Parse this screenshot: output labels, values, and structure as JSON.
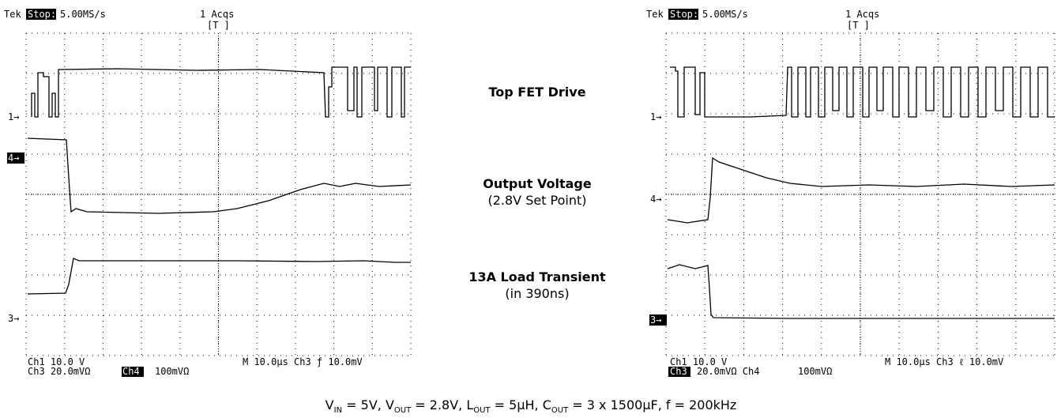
{
  "scopes": [
    {
      "header": {
        "brand": "Tek",
        "status": "Stop:",
        "rate": "5.00MS/s",
        "acqs": "1 Acqs",
        "trigger_mark": "[T ]"
      },
      "markers": [
        "1→",
        "4→",
        "3→"
      ],
      "readout": {
        "line1_left": "Ch1    10.0 V",
        "line1_right": "M 10.0µs  Ch3 ƒ   10.0mV",
        "line2_a": "Ch3  20.0mVΩ",
        "line2_b": "Ch4",
        "line2_c": "100mVΩ"
      }
    },
    {
      "header": {
        "brand": "Tek",
        "status": "Stop:",
        "rate": "5.00MS/s",
        "acqs": "1 Acqs",
        "trigger_mark": "[T ]"
      },
      "markers": [
        "1→",
        "4→",
        "3→"
      ],
      "readout": {
        "line1_left": "Ch1    10.0 V",
        "line1_right": "M 10.0µs  Ch3 ℓ   10.0mV",
        "line2_a": "Ch3",
        "line2_b": "20.0mVΩ  Ch4",
        "line2_c": "100mVΩ"
      }
    }
  ],
  "labels": {
    "top_fet": "Top FET Drive",
    "output_voltage": "Output Voltage",
    "set_point": "(2.8V Set Point)",
    "load_transient": "13A Load Transient",
    "transient_time": "(in 390ns)"
  },
  "caption": [
    {
      "text": "V"
    },
    {
      "sub": "IN"
    },
    {
      "text": " = 5V, V"
    },
    {
      "sub": "OUT"
    },
    {
      "text": " = 2.8V, L"
    },
    {
      "sub": "OUT"
    },
    {
      "text": " = 5µH, C"
    },
    {
      "sub": "OUT"
    },
    {
      "text": " = 3 x 1500µF, f = 200kHz"
    }
  ]
}
